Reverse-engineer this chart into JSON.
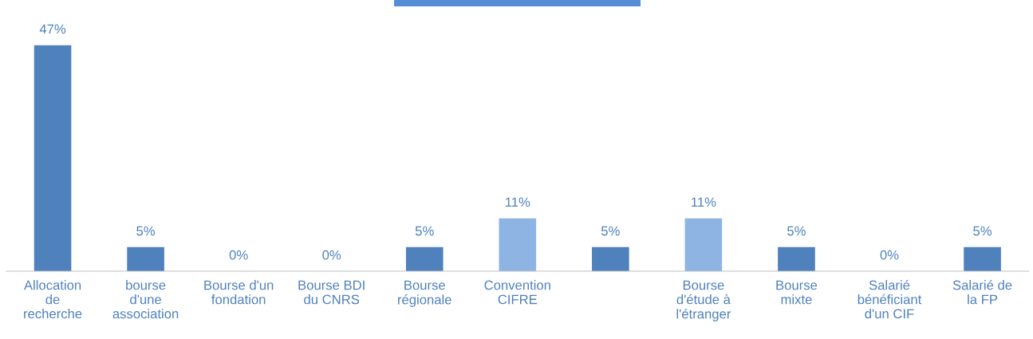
{
  "chart_data": {
    "type": "bar",
    "categories": [
      "Allocation\nde\nrecherche",
      "bourse\nd'une\nassociation",
      "Bourse d'un\nfondation",
      "Bourse BDI\ndu CNRS",
      "Bourse\nrégionale",
      "Convention\nCIFRE",
      null,
      "Bourse\nd'étude à\nl'étranger",
      "Bourse\nmixte",
      "Salarié\nbénéficiant\nd'un CIF",
      "Salarié de\nla FP"
    ],
    "values": [
      47,
      5,
      0,
      0,
      5,
      11,
      5,
      11,
      5,
      0,
      5
    ],
    "value_labels": [
      "47%",
      "5%",
      "0%",
      "0%",
      "5%",
      "11%",
      "5%",
      "11%",
      "5%",
      "0%",
      "5%"
    ],
    "colors": [
      "#4f81bd",
      "#4f81bd",
      "#4f81bd",
      "#4f81bd",
      "#4f81bd",
      "#8eb4e3",
      "#4f81bd",
      "#8eb4e3",
      "#4f81bd",
      "#4f81bd",
      "#4f81bd"
    ],
    "grid": false,
    "legend": false
  }
}
